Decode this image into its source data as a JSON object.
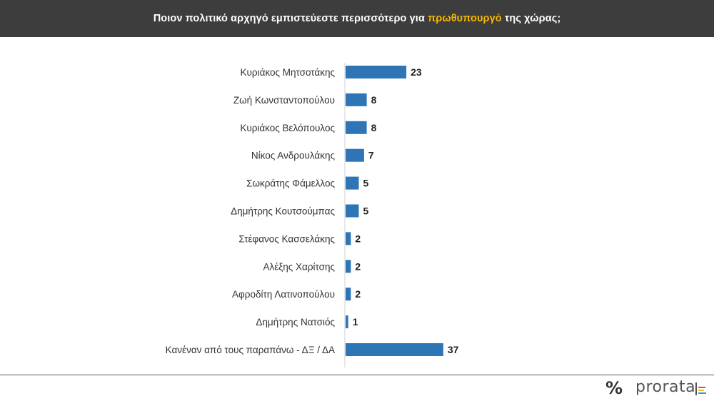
{
  "header": {
    "title_before": "Ποιον πολιτικό αρχηγό εμπιστεύεστε περισσότερο για",
    "title_highlight": "πρωθυπουργό",
    "title_after": "της χώρας;",
    "highlight_color": "#f5b800",
    "background": "#3d3d3d"
  },
  "chart_data": {
    "type": "bar",
    "orientation": "horizontal",
    "categories": [
      "Κυριάκος Μητσοτάκης",
      "Ζωή Κωνσταντοπούλου",
      "Κυριάκος Βελόπουλος",
      "Νίκος Ανδρουλάκης",
      "Σωκράτης Φάμελλος",
      "Δημήτρης Κουτσούμπας",
      "Στέφανος Κασσελάκης",
      "Αλέξης Χαρίτσης",
      "Αφροδίτη Λατινοπούλου",
      "Δημήτρης Νατσιός",
      "Κανέναν από τους παραπάνω - ΔΞ / ΔΑ"
    ],
    "values": [
      23,
      8,
      8,
      7,
      5,
      5,
      2,
      2,
      2,
      1,
      37
    ],
    "bar_color": "#2e75b6",
    "data_labels": true,
    "grid": false,
    "legend": "none"
  },
  "footer": {
    "symbol": "%",
    "brand": "prorata"
  }
}
